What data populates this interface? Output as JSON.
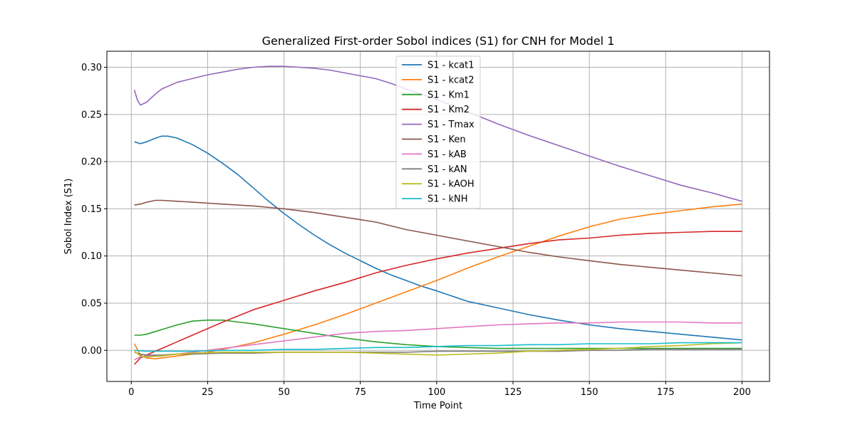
{
  "chart_data": {
    "type": "line",
    "title": "Generalized First-order Sobol indices (S1) for CNH for Model 1",
    "xlabel": "Time Point",
    "ylabel": "Sobol Index (S1)",
    "xlim": [
      -8,
      209
    ],
    "ylim": [
      -0.033,
      0.317
    ],
    "xticks": [
      0,
      25,
      50,
      75,
      100,
      125,
      150,
      175,
      200
    ],
    "yticks": [
      0.0,
      0.05,
      0.1,
      0.15,
      0.2,
      0.25,
      0.3
    ],
    "ytick_labels": [
      "0.00",
      "0.05",
      "0.10",
      "0.15",
      "0.20",
      "0.25",
      "0.30"
    ],
    "grid": true,
    "legend_position": "top-center",
    "series": [
      {
        "name": "S1 - kcat1",
        "color": "#1f77b4",
        "x": [
          1,
          3,
          5,
          8,
          10,
          12,
          15,
          20,
          25,
          30,
          35,
          40,
          45,
          50,
          55,
          60,
          65,
          70,
          75,
          80,
          85,
          90,
          95,
          100,
          110,
          120,
          130,
          140,
          150,
          160,
          170,
          180,
          190,
          200
        ],
        "y": [
          0.221,
          0.219,
          0.221,
          0.225,
          0.227,
          0.227,
          0.225,
          0.218,
          0.209,
          0.198,
          0.186,
          0.172,
          0.158,
          0.145,
          0.133,
          0.122,
          0.112,
          0.103,
          0.095,
          0.087,
          0.08,
          0.074,
          0.068,
          0.063,
          0.052,
          0.045,
          0.038,
          0.032,
          0.027,
          0.023,
          0.02,
          0.017,
          0.014,
          0.011
        ]
      },
      {
        "name": "S1 - kcat2",
        "color": "#ff7f0e",
        "x": [
          1,
          3,
          5,
          8,
          10,
          15,
          20,
          25,
          30,
          40,
          50,
          60,
          70,
          80,
          90,
          100,
          110,
          120,
          130,
          140,
          150,
          160,
          170,
          180,
          190,
          200
        ],
        "y": [
          0.007,
          -0.005,
          -0.008,
          -0.009,
          -0.008,
          -0.006,
          -0.004,
          -0.002,
          0.001,
          0.008,
          0.017,
          0.027,
          0.038,
          0.05,
          0.062,
          0.074,
          0.087,
          0.099,
          0.11,
          0.121,
          0.131,
          0.139,
          0.144,
          0.148,
          0.152,
          0.155
        ]
      },
      {
        "name": "S1 - Km1",
        "color": "#2ca02c",
        "x": [
          1,
          3,
          5,
          8,
          10,
          15,
          20,
          25,
          30,
          35,
          40,
          50,
          60,
          70,
          80,
          90,
          100,
          110,
          120,
          130,
          140,
          150,
          160,
          170,
          180,
          190,
          200
        ],
        "y": [
          0.016,
          0.016,
          0.017,
          0.02,
          0.022,
          0.027,
          0.031,
          0.032,
          0.032,
          0.03,
          0.028,
          0.023,
          0.018,
          0.013,
          0.009,
          0.006,
          0.004,
          0.003,
          0.002,
          0.002,
          0.002,
          0.002,
          0.002,
          0.002,
          0.002,
          0.002,
          0.002
        ]
      },
      {
        "name": "S1 - Km2",
        "color": "#d62728",
        "x": [
          1,
          3,
          5,
          10,
          15,
          20,
          30,
          40,
          50,
          60,
          70,
          80,
          90,
          100,
          110,
          120,
          130,
          140,
          150,
          160,
          170,
          180,
          190,
          200
        ],
        "y": [
          -0.015,
          -0.008,
          -0.005,
          0.002,
          0.009,
          0.016,
          0.03,
          0.043,
          0.053,
          0.063,
          0.072,
          0.082,
          0.09,
          0.097,
          0.103,
          0.108,
          0.113,
          0.117,
          0.119,
          0.122,
          0.124,
          0.125,
          0.126,
          0.126
        ]
      },
      {
        "name": "S1 - Tmax",
        "color": "#9467bd",
        "x": [
          1,
          2,
          3,
          5,
          8,
          10,
          15,
          20,
          25,
          30,
          35,
          40,
          45,
          50,
          55,
          60,
          65,
          70,
          75,
          80,
          85,
          90,
          100,
          110,
          120,
          130,
          140,
          150,
          160,
          170,
          180,
          190,
          200
        ],
        "y": [
          0.276,
          0.265,
          0.26,
          0.263,
          0.272,
          0.277,
          0.284,
          0.288,
          0.292,
          0.295,
          0.298,
          0.3,
          0.301,
          0.301,
          0.3,
          0.299,
          0.297,
          0.294,
          0.291,
          0.288,
          0.283,
          0.277,
          0.266,
          0.253,
          0.24,
          0.228,
          0.217,
          0.206,
          0.195,
          0.185,
          0.175,
          0.167,
          0.158
        ]
      },
      {
        "name": "S1 - Ken",
        "color": "#8c564b",
        "x": [
          1,
          3,
          5,
          8,
          10,
          15,
          20,
          25,
          30,
          40,
          50,
          60,
          70,
          80,
          90,
          100,
          110,
          120,
          130,
          140,
          150,
          160,
          170,
          180,
          190,
          200
        ],
        "y": [
          0.154,
          0.155,
          0.157,
          0.159,
          0.159,
          0.158,
          0.157,
          0.156,
          0.155,
          0.153,
          0.15,
          0.146,
          0.141,
          0.136,
          0.128,
          0.122,
          0.116,
          0.11,
          0.104,
          0.099,
          0.095,
          0.091,
          0.088,
          0.085,
          0.082,
          0.079
        ]
      },
      {
        "name": "S1 - kAB",
        "color": "#e377c2",
        "x": [
          1,
          3,
          5,
          10,
          15,
          20,
          30,
          40,
          50,
          60,
          70,
          80,
          90,
          100,
          110,
          120,
          130,
          140,
          150,
          160,
          170,
          180,
          190,
          200
        ],
        "y": [
          -0.01,
          -0.007,
          -0.006,
          -0.005,
          -0.004,
          -0.002,
          0.002,
          0.006,
          0.01,
          0.014,
          0.018,
          0.02,
          0.021,
          0.023,
          0.025,
          0.027,
          0.028,
          0.029,
          0.029,
          0.03,
          0.03,
          0.03,
          0.029,
          0.029
        ]
      },
      {
        "name": "S1 - kAN",
        "color": "#7f7f7f",
        "x": [
          1,
          3,
          5,
          10,
          15,
          20,
          30,
          40,
          50,
          60,
          70,
          80,
          90,
          100,
          110,
          120,
          130,
          140,
          150,
          160,
          170,
          180,
          190,
          200
        ],
        "y": [
          -0.002,
          -0.004,
          -0.005,
          -0.005,
          -0.004,
          -0.004,
          -0.003,
          -0.003,
          -0.002,
          -0.002,
          -0.002,
          -0.002,
          -0.002,
          -0.001,
          -0.001,
          -0.001,
          -0.001,
          -0.001,
          0.0,
          0.0,
          0.001,
          0.001,
          0.001,
          0.001
        ]
      },
      {
        "name": "S1 - kAOH",
        "color": "#bcbd22",
        "x": [
          1,
          3,
          5,
          10,
          15,
          20,
          30,
          40,
          50,
          60,
          70,
          80,
          90,
          100,
          110,
          120,
          130,
          140,
          150,
          160,
          170,
          180,
          190,
          200
        ],
        "y": [
          -0.001,
          -0.006,
          -0.007,
          -0.006,
          -0.004,
          -0.003,
          -0.002,
          -0.002,
          -0.002,
          -0.002,
          -0.002,
          -0.003,
          -0.004,
          -0.005,
          -0.004,
          -0.003,
          -0.001,
          0.0,
          0.001,
          0.002,
          0.004,
          0.005,
          0.007,
          0.008
        ]
      },
      {
        "name": "S1 - kNH",
        "color": "#17becf",
        "x": [
          1,
          5,
          10,
          20,
          30,
          40,
          50,
          60,
          70,
          80,
          90,
          100,
          110,
          120,
          130,
          140,
          150,
          160,
          170,
          180,
          190,
          200
        ],
        "y": [
          0.0,
          -0.001,
          -0.001,
          -0.001,
          0.0,
          0.0,
          0.001,
          0.001,
          0.002,
          0.003,
          0.003,
          0.004,
          0.005,
          0.005,
          0.006,
          0.006,
          0.007,
          0.007,
          0.007,
          0.008,
          0.008,
          0.008
        ]
      }
    ]
  }
}
